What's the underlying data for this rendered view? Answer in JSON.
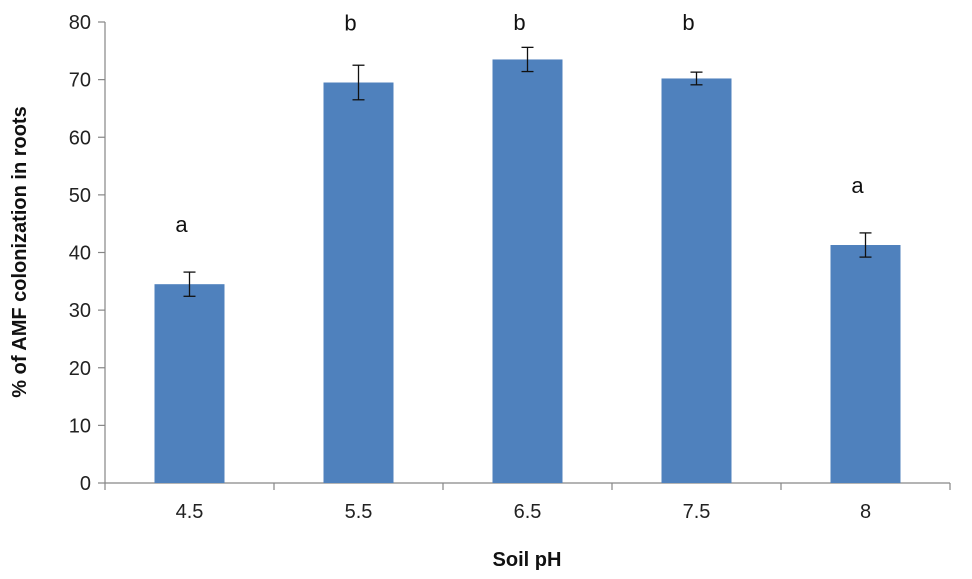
{
  "chart_data": {
    "type": "bar",
    "categories": [
      "4.5",
      "5.5",
      "6.5",
      "7.5",
      "8"
    ],
    "values": [
      34.5,
      69.5,
      73.5,
      70.2,
      41.3
    ],
    "errors": [
      2.1,
      3.0,
      2.1,
      1.1,
      2.1
    ],
    "significance": [
      "a",
      "b",
      "b",
      "b",
      "a"
    ],
    "xlabel": "Soil pH",
    "ylabel": "% of AMF colonization in roots",
    "ylim": [
      0,
      80
    ],
    "yticks": [
      0,
      10,
      20,
      30,
      40,
      50,
      60,
      70,
      80
    ],
    "grid": false,
    "bar_color": "#4F81BD",
    "axis_color": "#868686"
  }
}
